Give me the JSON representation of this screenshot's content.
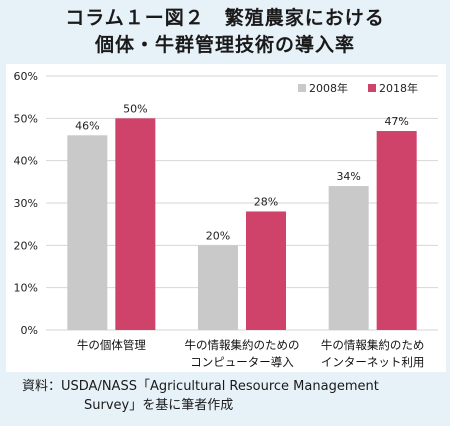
{
  "title_line1": "コラム１ー図２　繁殖農家における",
  "title_line2": "個体・牛群管理技術の導入率",
  "source_line1": "資料：USDA/NASS「Agricultural Resource Management",
  "source_line2": "Survey」を基に筆者作成",
  "colors": {
    "s2008": "#c9c9c9",
    "s2018": "#cf4269",
    "grid": "#d6d6d6",
    "background": "#e7f1f8"
  },
  "chart_data": {
    "type": "bar",
    "categories": [
      [
        "牛の個体管理"
      ],
      [
        "牛の情報集約のための",
        "コンピューター導入"
      ],
      [
        "牛の情報集約のため",
        "インターネット利用"
      ]
    ],
    "series": [
      {
        "name": "2008年",
        "values": [
          46,
          20,
          34
        ],
        "labels": [
          "46%",
          "20%",
          "34%"
        ]
      },
      {
        "name": "2018年",
        "values": [
          50,
          28,
          47
        ],
        "labels": [
          "50%",
          "28%",
          "47%"
        ]
      }
    ],
    "ylim": [
      0,
      60
    ],
    "yticks": [
      "0%",
      "10%",
      "20%",
      "30%",
      "40%",
      "50%",
      "60%"
    ],
    "grid": true,
    "legend_position": "top-right"
  }
}
